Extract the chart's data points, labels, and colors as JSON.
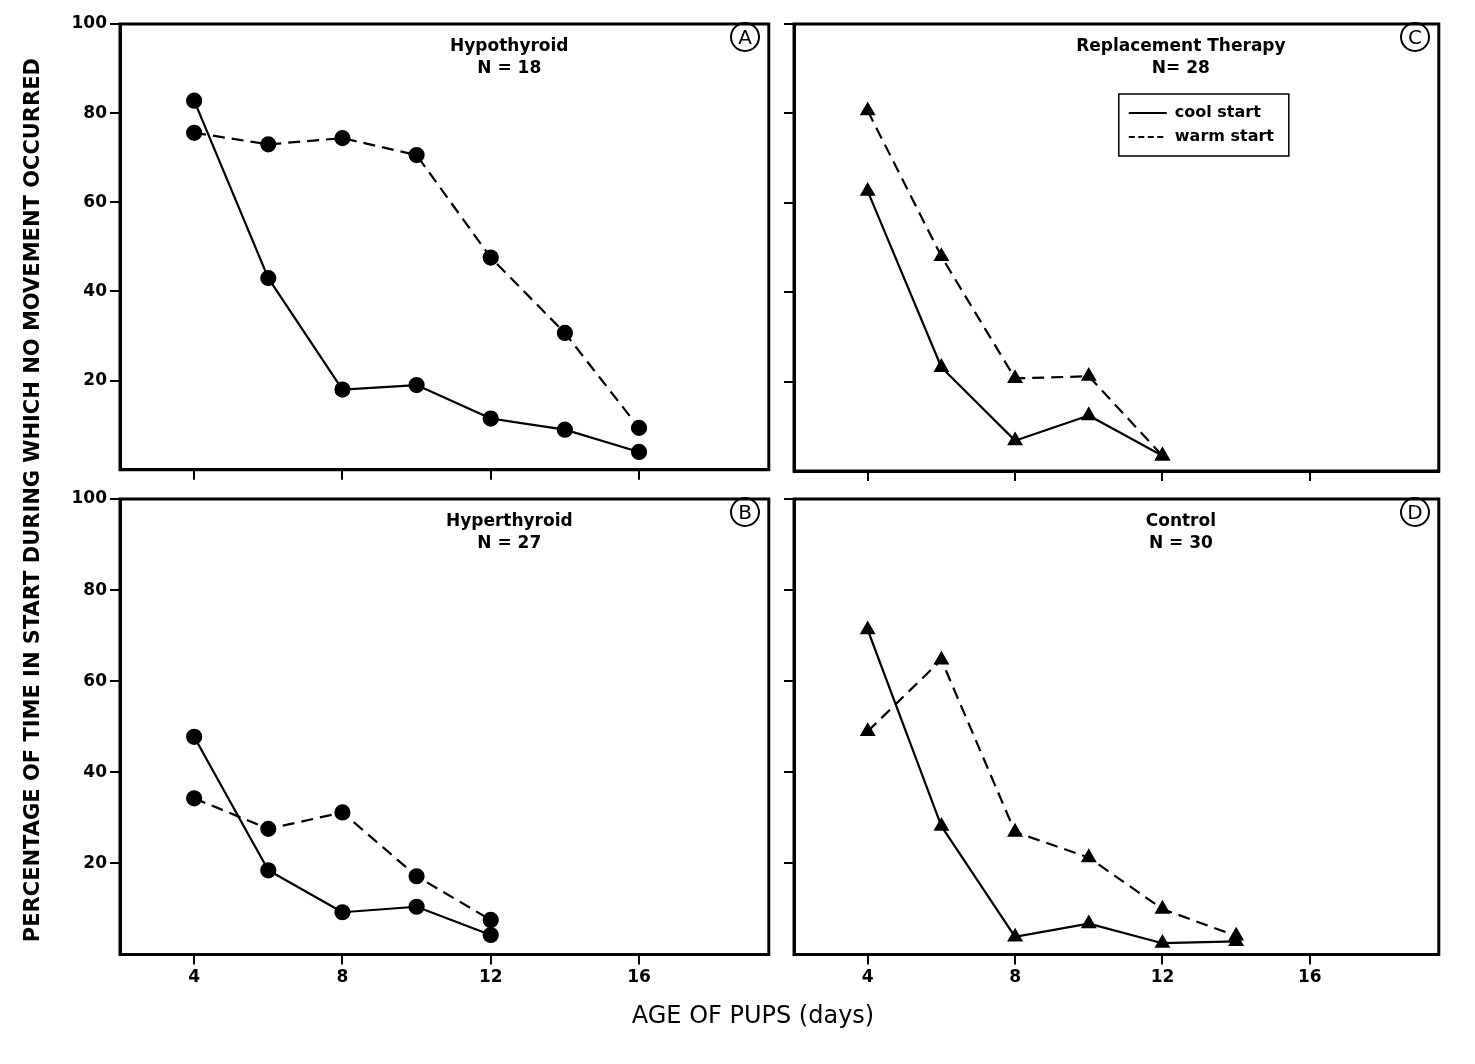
{
  "chart_data": [
    {
      "type": "line",
      "title": "Hypothyroid",
      "subtitle": "N = 18",
      "annotations": [
        "A"
      ],
      "ylabel": "PERCENTAGE OF TIME IN START DURING WHICH NO MOVEMENT OCCURRED",
      "x": [
        4,
        6,
        8,
        10,
        12,
        14,
        16
      ],
      "xlim": [
        2,
        19.5
      ],
      "xticks": [
        4,
        8,
        12,
        16
      ],
      "ylim": [
        0,
        100
      ],
      "yticks": [
        20,
        40,
        60,
        80,
        100
      ],
      "tick_labels": "y",
      "grid": false,
      "legend": false,
      "marker": "circle",
      "series": [
        {
          "color": "#000000",
          "line_style": "solid",
          "values": [
            82.8,
            43,
            18,
            19,
            11.5,
            9,
            4
          ]
        },
        {
          "color": "#000000",
          "line_style": "dashed",
          "values": [
            75.6,
            73,
            74.4,
            70.6,
            47.6,
            30.7,
            9.4
          ]
        }
      ]
    },
    {
      "type": "line",
      "title": "Replacement Therapy",
      "subtitle": "N= 28",
      "annotations": [
        "C"
      ],
      "x": [
        4,
        6,
        8,
        10,
        12
      ],
      "xlim": [
        2,
        19.5
      ],
      "xticks": [
        4,
        8,
        12,
        16
      ],
      "ylim": [
        0,
        100
      ],
      "yticks": [
        20,
        40,
        60,
        80,
        100
      ],
      "tick_labels": false,
      "grid": false,
      "legend": "top right",
      "marker": "triangle",
      "series": [
        {
          "name": "cool start",
          "color": "#000000",
          "line_style": "solid",
          "values": [
            62.6,
            23.2,
            6.8,
            12.4,
            3.4
          ]
        },
        {
          "name": "warm start",
          "color": "#000000",
          "line_style": "dashed",
          "values": [
            80.6,
            48,
            20.7,
            21.2,
            3.4
          ]
        }
      ]
    },
    {
      "type": "line",
      "title": "Hyperthyroid",
      "subtitle": "N = 27",
      "annotations": [
        "B"
      ],
      "xlabel": "AGE OF PUPS (days)",
      "x": [
        4,
        6,
        8,
        10,
        12
      ],
      "xlim": [
        2,
        19.5
      ],
      "xticks": [
        4,
        8,
        12,
        16
      ],
      "ylim": [
        0,
        100
      ],
      "yticks": [
        20,
        40,
        60,
        80,
        100
      ],
      "grid": false,
      "legend": false,
      "marker": "circle",
      "series": [
        {
          "color": "#000000",
          "line_style": "solid",
          "values": [
            47.8,
            18.5,
            9.3,
            10.5,
            4.3
          ]
        },
        {
          "color": "#000000",
          "line_style": "dashed",
          "values": [
            34.3,
            27.6,
            31.2,
            17.2,
            7.6
          ]
        }
      ]
    },
    {
      "type": "line",
      "title": "Control",
      "subtitle": "N = 30",
      "annotations": [
        "D"
      ],
      "x": [
        4,
        6,
        8,
        10,
        12,
        14
      ],
      "xlim": [
        2,
        19.5
      ],
      "xticks": [
        4,
        8,
        12,
        16
      ],
      "ylim": [
        0,
        100
      ],
      "yticks": [
        20,
        40,
        60,
        80,
        100
      ],
      "tick_labels": "x",
      "grid": false,
      "legend": false,
      "marker": "triangle",
      "series": [
        {
          "color": "#000000",
          "line_style": "solid",
          "values": [
            71.3,
            28.2,
            3.9,
            6.8,
            2.5,
            2.9
          ]
        },
        {
          "color": "#000000",
          "line_style": "dashed",
          "values": [
            49,
            64.7,
            26.9,
            21.3,
            10,
            4.1
          ]
        }
      ]
    }
  ]
}
